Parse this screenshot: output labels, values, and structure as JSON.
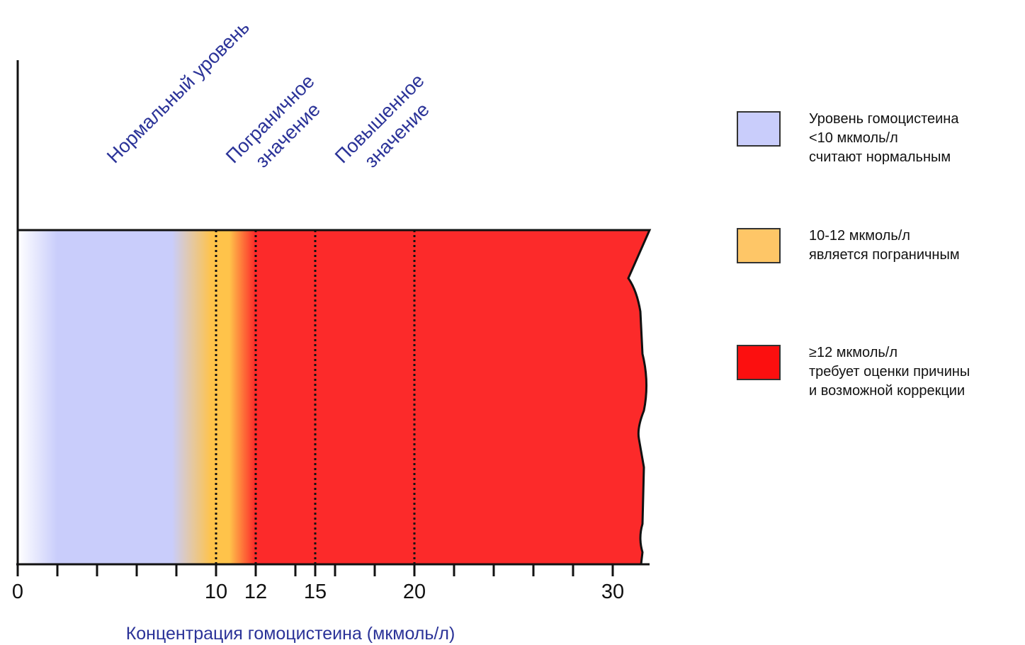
{
  "chart_data": {
    "type": "bar",
    "xlabel": "Концентрация гомоцистеина (мкмоль/л)",
    "ylabel": "",
    "title": "",
    "xlim": [
      0,
      31.5
    ],
    "x_ticks_major": [
      0,
      10,
      12,
      15,
      20,
      30
    ],
    "x_ticks_minor": [
      2,
      4,
      6,
      8,
      14,
      16,
      18,
      22,
      24,
      26,
      28
    ],
    "reference_lines": [
      10,
      12,
      15,
      20
    ],
    "zones": [
      {
        "name": "Нормальный уровень",
        "from": 0,
        "to": 10,
        "color": "#c9cdfb"
      },
      {
        "name": "Пограничное значение",
        "from": 10,
        "to": 12,
        "color": "#ffc34a"
      },
      {
        "name": "Повышенное значение",
        "from": 12,
        "to": 31.5,
        "color": "#fc2a2a"
      }
    ],
    "zone_labels": [
      {
        "lines": [
          "Нормальный уровень"
        ],
        "at": 4
      },
      {
        "lines": [
          "Пограничное",
          "значение"
        ],
        "at": 10
      },
      {
        "lines": [
          "Повышенное",
          "значение"
        ],
        "at": 15.5
      }
    ],
    "legend": {
      "position": "right",
      "items": [
        {
          "color": "#c9cdfb",
          "lines": [
            "Уровень гомоцистеина",
            "<10 мкмоль/л",
            "считают нормальным"
          ]
        },
        {
          "color": "#fec667",
          "lines": [
            "10-12 мкмоль/л",
            "является пограничным"
          ]
        },
        {
          "color": "#fc0f0f",
          "lines": [
            "≥12 мкмоль/л",
            "требует оценки причины",
            "и возможной коррекции"
          ]
        }
      ]
    }
  }
}
